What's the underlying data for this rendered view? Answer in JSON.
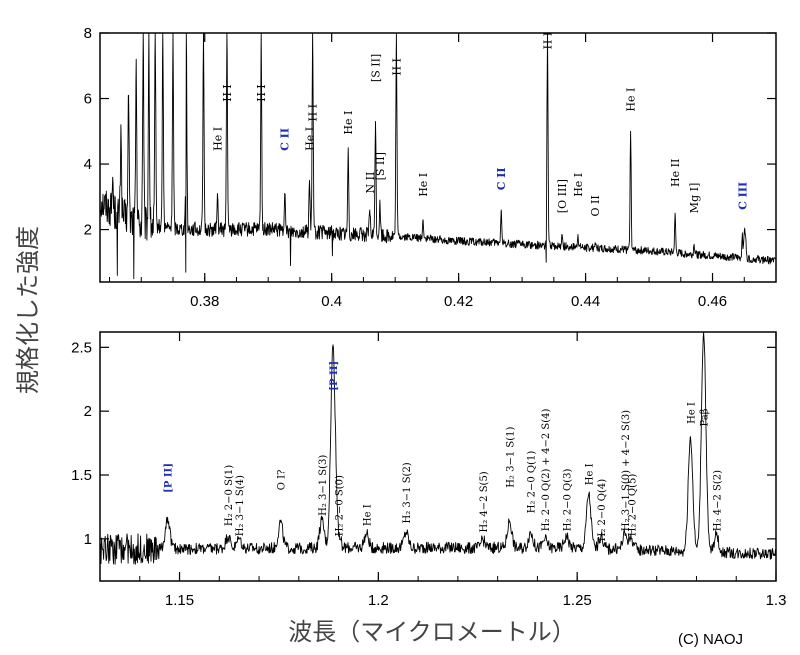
{
  "axis_labels": {
    "y": "規格化した強度",
    "x": "波長（マイクロメートル）"
  },
  "credit": "(C) NAOJ",
  "colors": {
    "spectrum": "#000000",
    "blue_label": "#1c2fb8"
  },
  "chart_data": [
    {
      "type": "line",
      "panel": "top",
      "xlim": [
        0.3635,
        0.47
      ],
      "ylim": [
        0.4,
        8
      ],
      "xticks": [
        0.38,
        0.4,
        0.42,
        0.44,
        0.46
      ],
      "xtick_labels": [
        "0.38",
        "0.4",
        "0.42",
        "0.44",
        "0.46"
      ],
      "yticks": [
        2,
        4,
        6,
        8
      ],
      "ytick_labels": [
        "2",
        "4",
        "6",
        "8"
      ],
      "baseline": [
        [
          0.3635,
          2.9
        ],
        [
          0.366,
          2.5
        ],
        [
          0.37,
          2.15
        ],
        [
          0.375,
          2.05
        ],
        [
          0.38,
          2.0
        ],
        [
          0.39,
          2.0
        ],
        [
          0.4,
          1.9
        ],
        [
          0.41,
          1.8
        ],
        [
          0.42,
          1.65
        ],
        [
          0.43,
          1.55
        ],
        [
          0.44,
          1.45
        ],
        [
          0.45,
          1.35
        ],
        [
          0.46,
          1.2
        ],
        [
          0.47,
          1.05
        ]
      ],
      "lines": [
        {
          "x": 0.3655,
          "peak": 3.6,
          "label": ""
        },
        {
          "x": 0.3668,
          "peak": 5.2,
          "label": ""
        },
        {
          "x": 0.368,
          "peak": 6.1,
          "label": ""
        },
        {
          "x": 0.3692,
          "peak": 7.2,
          "label": ""
        },
        {
          "x": 0.3703,
          "peak": 8.0,
          "label": ""
        },
        {
          "x": 0.3712,
          "peak": 8.0,
          "label": ""
        },
        {
          "x": 0.3722,
          "peak": 8.0,
          "label": ""
        },
        {
          "x": 0.3734,
          "peak": 8.0,
          "label": ""
        },
        {
          "x": 0.375,
          "peak": 8.0,
          "label": ""
        },
        {
          "x": 0.3771,
          "peak": 8.0,
          "label": ""
        },
        {
          "x": 0.3798,
          "peak": 8.0,
          "label": ""
        },
        {
          "x": 0.382,
          "peak": 3.1,
          "label": "He I",
          "label_y": 4.4
        },
        {
          "x": 0.3835,
          "peak": 8.0,
          "label": "H I",
          "label_y": 5.9
        },
        {
          "x": 0.3889,
          "peak": 8.0,
          "label": "H I",
          "label_y": 5.9
        },
        {
          "x": 0.3926,
          "peak": 3.1,
          "label": "C II",
          "label_y": 4.4,
          "color": "blue"
        },
        {
          "x": 0.3965,
          "peak": 3.5,
          "label": "He I",
          "label_y": 4.4
        },
        {
          "x": 0.397,
          "peak": 8.0,
          "label": "H I",
          "label_y": 5.3
        },
        {
          "x": 0.4026,
          "peak": 4.5,
          "label": "He I",
          "label_y": 4.9
        },
        {
          "x": 0.406,
          "peak": 2.6,
          "label": "N II",
          "label_y": 3.1
        },
        {
          "x": 0.4069,
          "peak": 5.3,
          "label": "[S II]",
          "label_y": 6.5
        },
        {
          "x": 0.4076,
          "peak": 2.9,
          "label": "[S II]",
          "label_y": 3.5
        },
        {
          "x": 0.4102,
          "peak": 8.0,
          "label": "H I",
          "label_y": 6.7
        },
        {
          "x": 0.4144,
          "peak": 2.3,
          "label": "He I",
          "label_y": 3.0
        },
        {
          "x": 0.4267,
          "peak": 2.6,
          "label": "C II",
          "label_y": 3.2,
          "color": "blue"
        },
        {
          "x": 0.434,
          "peak": 8.0,
          "label": "H I",
          "label_y": 7.5
        },
        {
          "x": 0.4363,
          "peak": 1.85,
          "label": "[O III]",
          "label_y": 2.5
        },
        {
          "x": 0.4388,
          "peak": 1.85,
          "label": "He I",
          "label_y": 3.0
        },
        {
          "x": 0.4415,
          "peak": 1.6,
          "label": "O II",
          "label_y": 2.4
        },
        {
          "x": 0.4471,
          "peak": 5.0,
          "label": "He I",
          "label_y": 5.6
        },
        {
          "x": 0.4541,
          "peak": 2.5,
          "label": "He II",
          "label_y": 3.3
        },
        {
          "x": 0.4571,
          "peak": 1.55,
          "label": "Mg I]",
          "label_y": 2.5
        },
        {
          "x": 0.4647,
          "peak": 1.9,
          "label": "C III",
          "label_y": 2.6,
          "color": "blue"
        },
        {
          "x": 0.465,
          "peak": 1.95,
          "label": ""
        },
        {
          "x": 0.4652,
          "peak": 1.85,
          "label": ""
        }
      ]
    },
    {
      "type": "line",
      "panel": "bottom",
      "xlim": [
        1.13,
        1.3
      ],
      "ylim": [
        0.67,
        2.62
      ],
      "xticks": [
        1.15,
        1.2,
        1.25,
        1.3
      ],
      "xtick_labels": [
        "1.15",
        "1.2",
        "1.25",
        "1.3"
      ],
      "yticks": [
        1.0,
        1.5,
        2.0,
        2.5
      ],
      "ytick_labels": [
        "1",
        "1.5",
        "2",
        "2.5"
      ],
      "baseline": [
        [
          1.13,
          0.92
        ],
        [
          1.2,
          0.93
        ],
        [
          1.25,
          0.93
        ],
        [
          1.3,
          0.88
        ]
      ],
      "lines": [
        {
          "x": 1.147,
          "peak": 1.17,
          "label": "[P II]",
          "label_y": 1.36,
          "color": "blue"
        },
        {
          "x": 1.1622,
          "peak": 1.02,
          "label": "H₂ 2−0 S(1)",
          "label_y": 1.1
        },
        {
          "x": 1.165,
          "peak": 1.0,
          "label": "H₂ 3−1 S(4)",
          "label_y": 1.02
        },
        {
          "x": 1.1754,
          "peak": 1.13,
          "label": "O I?",
          "label_y": 1.38
        },
        {
          "x": 1.1858,
          "peak": 1.15,
          "label": "H₂ 3−1 S(3)",
          "label_y": 1.18
        },
        {
          "x": 1.1886,
          "peak": 2.52,
          "label": "[P II]",
          "label_y": 2.16,
          "color": "blue"
        },
        {
          "x": 1.19,
          "peak": 1.02,
          "label": "H₂ 2−0 S(0)",
          "label_y": 1.02
        },
        {
          "x": 1.197,
          "peak": 1.04,
          "label": "He I",
          "label_y": 1.1
        },
        {
          "x": 1.207,
          "peak": 1.05,
          "label": "H₂ 3−1 S(2)",
          "label_y": 1.12
        },
        {
          "x": 1.2263,
          "peak": 0.99,
          "label": "H₂ 4−2 S(5)",
          "label_y": 1.05
        },
        {
          "x": 1.233,
          "peak": 1.14,
          "label": "H₂ 3−1 S(1)",
          "label_y": 1.4
        },
        {
          "x": 1.2383,
          "peak": 1.05,
          "label": "H₂ 2−0 Q(1)",
          "label_y": 1.2
        },
        {
          "x": 1.2419,
          "peak": 1.0,
          "label": "H₂ 2−0 Q(2) + 4−2 S(4)",
          "label_y": 1.06
        },
        {
          "x": 1.2473,
          "peak": 1.02,
          "label": "H₂ 2−0 Q(3)",
          "label_y": 1.06
        },
        {
          "x": 1.2529,
          "peak": 1.35,
          "label": "He I",
          "label_y": 1.42
        },
        {
          "x": 1.256,
          "peak": 1.02,
          "label": "H₂ 2−0 Q(4)",
          "label_y": 0.98
        },
        {
          "x": 1.262,
          "peak": 1.04,
          "label": "H₂ 3−1 S(0) + 4−2 S(3)",
          "label_y": 1.06
        },
        {
          "x": 1.2636,
          "peak": 1.0,
          "label": "H₂ 2−0 Q(5)",
          "label_y": 1.02
        },
        {
          "x": 1.2785,
          "peak": 1.8,
          "label": "He I",
          "label_y": 1.9
        },
        {
          "x": 1.2818,
          "peak": 2.62,
          "label": "Paβ",
          "label_y": 1.88
        },
        {
          "x": 1.285,
          "peak": 1.03,
          "label": "H₂ 4−2 S(2)",
          "label_y": 1.06
        }
      ]
    }
  ]
}
